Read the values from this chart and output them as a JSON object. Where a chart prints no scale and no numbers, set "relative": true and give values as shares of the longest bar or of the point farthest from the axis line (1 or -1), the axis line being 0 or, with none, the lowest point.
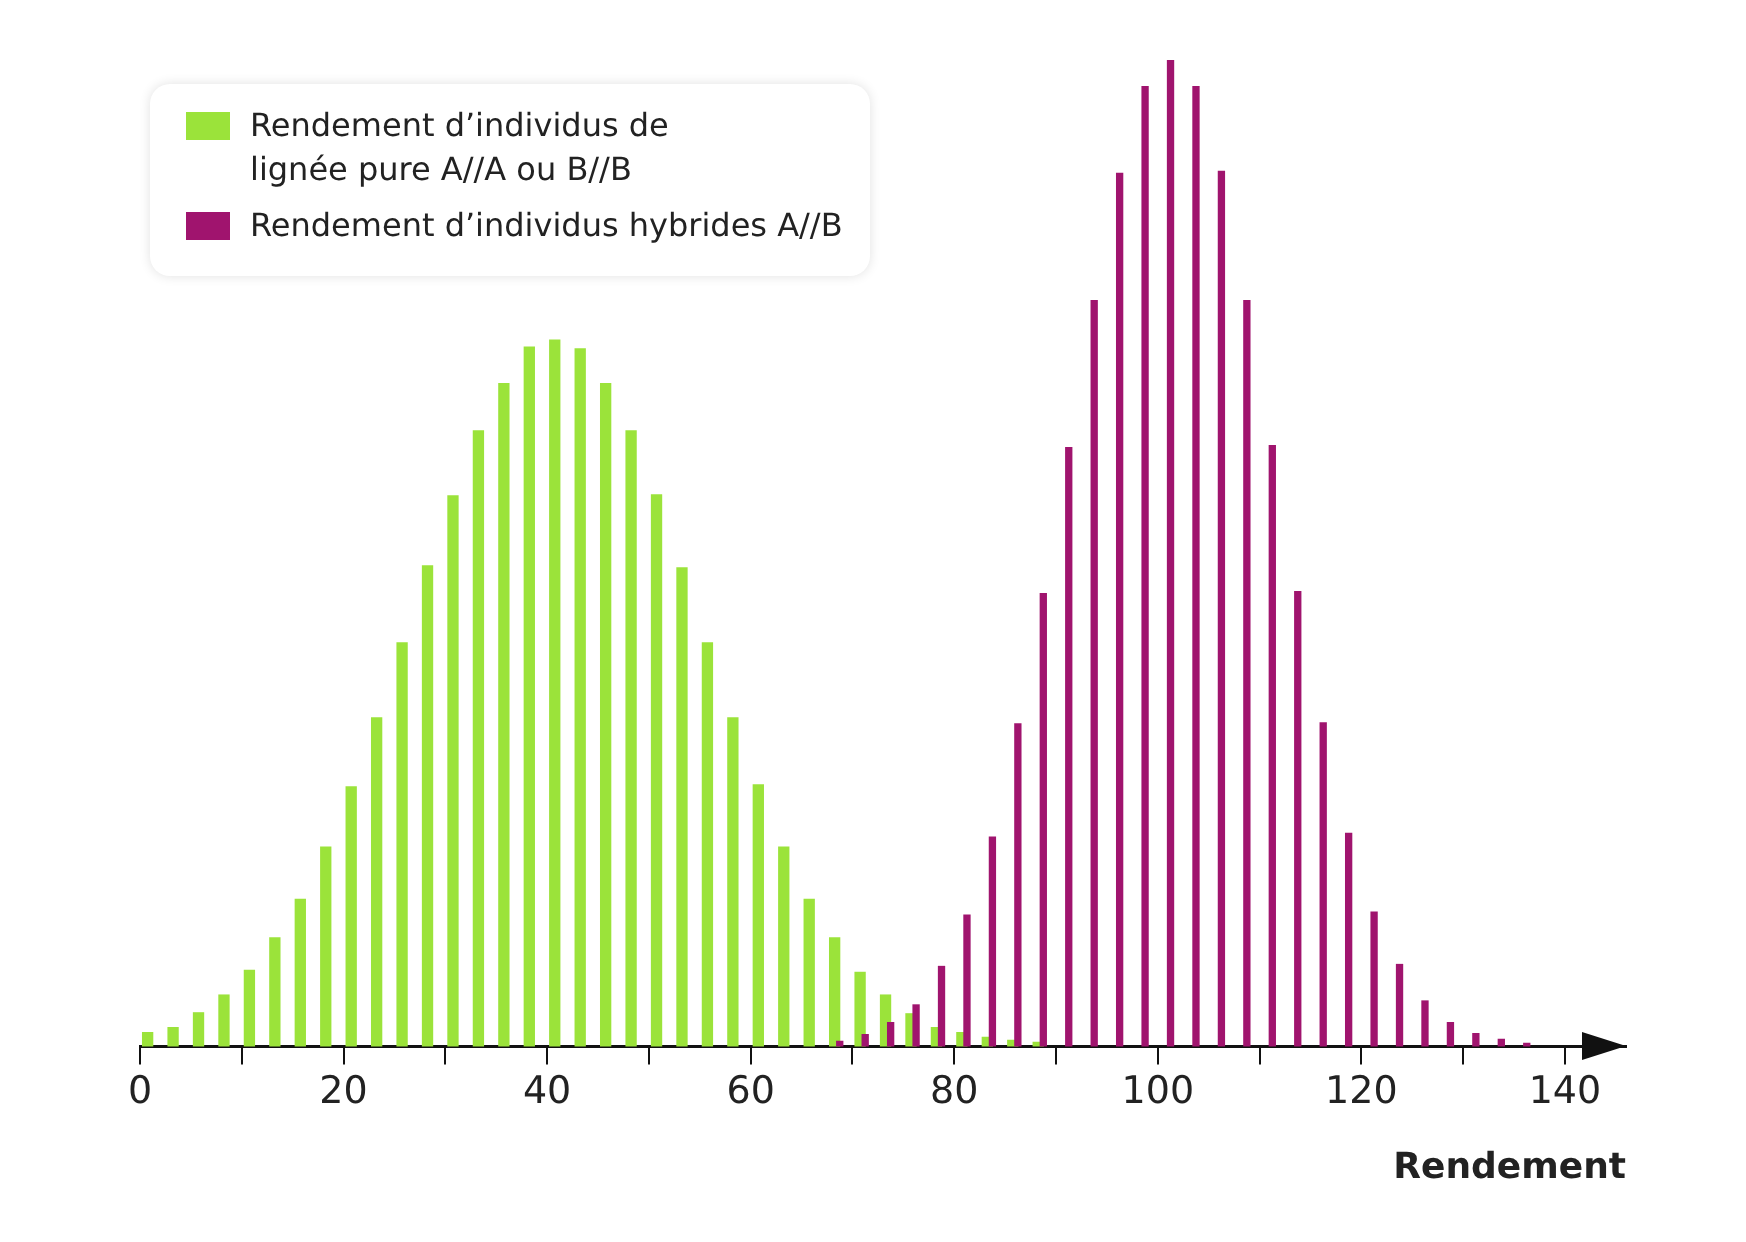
{
  "chart_data": {
    "type": "bar",
    "relative": true,
    "xlabel": "Rendement",
    "xlim": [
      0,
      146
    ],
    "xticks": [
      0,
      {
        "value": 10,
        "label": null
      },
      20,
      {
        "value": 30,
        "label": null
      },
      40,
      {
        "value": 50,
        "label": null
      },
      60,
      {
        "value": 70,
        "label": null
      },
      80,
      {
        "value": 90,
        "label": null
      },
      100,
      {
        "value": 110,
        "label": null
      },
      120,
      {
        "value": 130,
        "label": null
      },
      140
    ],
    "legend": "top left",
    "grid": false,
    "series": [
      {
        "name": "Rendement d’individus de lignée pure A//A ou B//B",
        "color": "#9be33a",
        "x": [
          0.75,
          3.25,
          5.75,
          8.25,
          10.75,
          13.25,
          15.75,
          18.25,
          20.75,
          23.25,
          25.75,
          28.25,
          30.75,
          33.25,
          35.75,
          38.25,
          40.75,
          43.25,
          45.75,
          48.25,
          50.75,
          53.25,
          55.75,
          58.25,
          60.75,
          63.25,
          65.75,
          68.25,
          70.75,
          73.25,
          75.75,
          78.25,
          80.75,
          83.25,
          85.75,
          88.25
        ],
        "values": [
          0.014,
          0.019,
          0.034,
          0.052,
          0.077,
          0.11,
          0.149,
          0.202,
          0.263,
          0.333,
          0.409,
          0.487,
          0.558,
          0.624,
          0.672,
          0.709,
          0.716,
          0.707,
          0.672,
          0.624,
          0.559,
          0.485,
          0.409,
          0.333,
          0.265,
          0.202,
          0.149,
          0.11,
          0.075,
          0.052,
          0.033,
          0.019,
          0.014,
          0.009,
          0.006,
          0.004
        ]
      },
      {
        "name": "Rendement d’individus hybrides A//B",
        "color": "#a0146e",
        "x": [
          68.75,
          71.25,
          73.75,
          76.25,
          78.75,
          81.25,
          83.75,
          86.25,
          88.75,
          91.25,
          93.75,
          96.25,
          98.75,
          101.25,
          103.75,
          106.25,
          108.75,
          111.25,
          113.75,
          116.25,
          118.75,
          121.25,
          123.75,
          126.25,
          128.75,
          131.25,
          133.75,
          136.25
        ],
        "values": [
          0.005,
          0.012,
          0.024,
          0.042,
          0.081,
          0.133,
          0.212,
          0.327,
          0.459,
          0.607,
          0.756,
          0.885,
          0.973,
          1.0,
          0.973,
          0.887,
          0.756,
          0.609,
          0.461,
          0.328,
          0.216,
          0.136,
          0.083,
          0.046,
          0.024,
          0.013,
          0.007,
          0.003
        ]
      }
    ]
  }
}
